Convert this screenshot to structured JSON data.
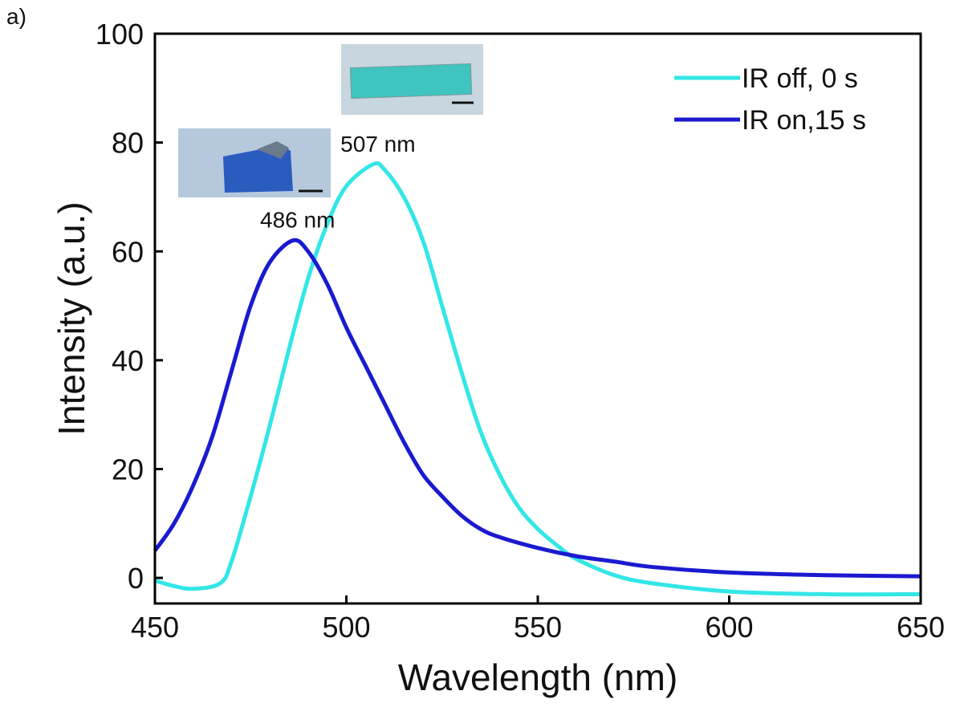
{
  "chart_data": {
    "type": "line",
    "panel_label": "a)",
    "x_label": "Wavelength (nm)",
    "y_label": "Intensity (a.u.)",
    "xlim": [
      450,
      650
    ],
    "ylim": [
      -4.7,
      100
    ],
    "xticks": [
      450,
      500,
      550,
      600,
      650
    ],
    "yticks": [
      0,
      20,
      40,
      60,
      80,
      100
    ],
    "legend_position": "upper right",
    "series": [
      {
        "name": "IR off, 0 s",
        "color": "#33e6e6",
        "x": [
          450,
          455,
          460,
          467,
          470,
          475,
          480,
          485,
          490,
          495,
          500,
          507,
          510,
          515,
          520,
          525,
          530,
          535,
          540,
          545,
          550,
          555,
          560,
          570,
          580,
          600,
          625,
          650
        ],
        "values": [
          -0.5,
          -1.5,
          -2,
          -1,
          3,
          15,
          28,
          42,
          55,
          65,
          72,
          76,
          75,
          70,
          62,
          50,
          38,
          27,
          19,
          13,
          9,
          6,
          3.5,
          0.5,
          -1,
          -2.5,
          -3,
          -3
        ]
      },
      {
        "name": "IR on,15 s",
        "color": "#1a1ad0",
        "x": [
          450,
          455,
          460,
          465,
          470,
          475,
          480,
          486,
          490,
          495,
          500,
          505,
          510,
          515,
          520,
          525,
          530,
          535,
          540,
          550,
          560,
          570,
          580,
          600,
          625,
          650
        ],
        "values": [
          5,
          10,
          17,
          26,
          38,
          50,
          58,
          62,
          60,
          54,
          46,
          39,
          32,
          25,
          19,
          15,
          11.5,
          9,
          7.5,
          5.5,
          4,
          3,
          2,
          1,
          0.5,
          0.3
        ]
      }
    ],
    "annotations": [
      {
        "text": "507 nm",
        "x": 507,
        "y": 76
      },
      {
        "text": "486 nm",
        "x": 486,
        "y": 62
      }
    ]
  }
}
